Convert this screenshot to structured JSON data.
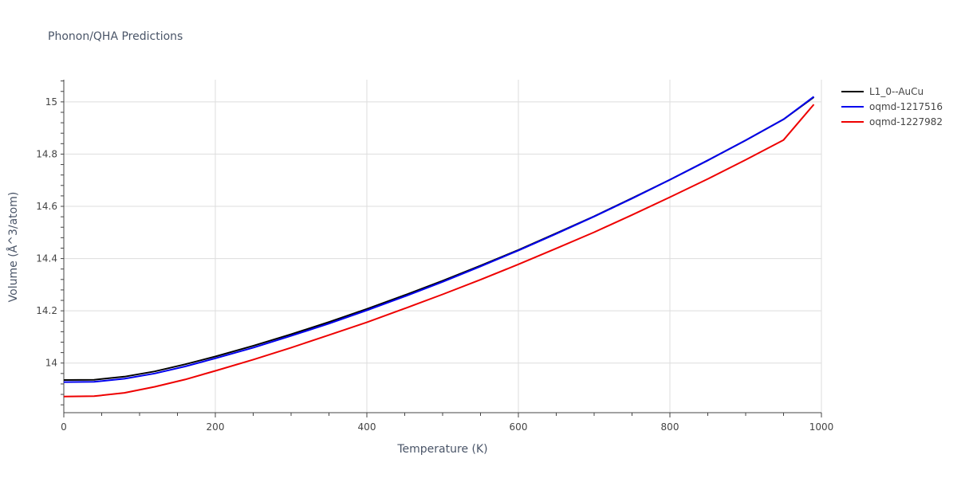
{
  "chart_data": {
    "type": "line",
    "title": "Phonon/QHA Predictions",
    "xlabel": "Temperature (K)",
    "ylabel": "Volume (Å^3/atom)",
    "xlim": [
      0,
      1000
    ],
    "ylim": [
      13.81,
      15.085
    ],
    "xticks": [
      0,
      200,
      400,
      600,
      800,
      1000
    ],
    "yticks": [
      14,
      14.2,
      14.4,
      14.6,
      14.8,
      15
    ],
    "grid": true,
    "legend_position": "top-right",
    "series": [
      {
        "name": "L1_0--AuCu",
        "color": "#000000",
        "x": [
          0,
          40,
          80,
          120,
          160,
          200,
          250,
          300,
          350,
          400,
          450,
          500,
          550,
          600,
          650,
          700,
          750,
          800,
          850,
          900,
          950,
          990
        ],
        "y": [
          13.935,
          13.936,
          13.948,
          13.968,
          13.995,
          14.025,
          14.066,
          14.11,
          14.157,
          14.207,
          14.26,
          14.315,
          14.373,
          14.433,
          14.497,
          14.562,
          14.631,
          14.702,
          14.776,
          14.853,
          14.933,
          15.018
        ]
      },
      {
        "name": "oqmd-1217516",
        "color": "#0000ee",
        "x": [
          0,
          40,
          80,
          120,
          160,
          200,
          250,
          300,
          350,
          400,
          450,
          500,
          550,
          600,
          650,
          700,
          750,
          800,
          850,
          900,
          950,
          990
        ],
        "y": [
          13.927,
          13.928,
          13.94,
          13.96,
          13.987,
          14.018,
          14.059,
          14.104,
          14.151,
          14.202,
          14.255,
          14.311,
          14.37,
          14.431,
          14.495,
          14.561,
          14.63,
          14.702,
          14.776,
          14.853,
          14.933,
          15.02
        ]
      },
      {
        "name": "oqmd-1227982",
        "color": "#ee0000",
        "x": [
          0,
          40,
          80,
          120,
          160,
          200,
          250,
          300,
          350,
          400,
          450,
          500,
          550,
          600,
          650,
          700,
          750,
          800,
          850,
          900,
          950,
          990
        ],
        "y": [
          13.872,
          13.873,
          13.886,
          13.909,
          13.937,
          13.97,
          14.013,
          14.059,
          14.107,
          14.156,
          14.209,
          14.263,
          14.319,
          14.378,
          14.439,
          14.501,
          14.567,
          14.635,
          14.705,
          14.778,
          14.854,
          14.99
        ]
      }
    ]
  }
}
